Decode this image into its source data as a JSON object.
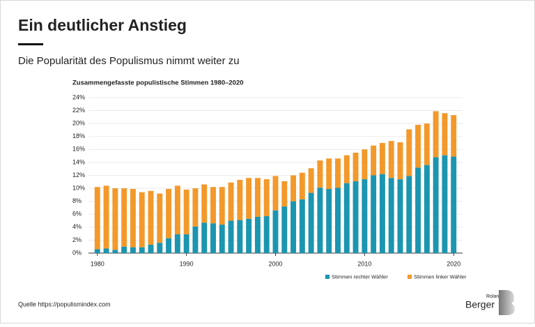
{
  "chart_data": {
    "type": "stacked_bar",
    "title": "Ein deutlicher Anstieg",
    "subtitle": "Die Popularität des Populismus nimmt weiter zu",
    "plot_title": "Zusammengefasste populistische Stimmen 1980–2020",
    "source": "Quelle https://populismindex.com",
    "x": [
      1980,
      1981,
      1982,
      1983,
      1984,
      1985,
      1986,
      1987,
      1988,
      1989,
      1990,
      1991,
      1992,
      1993,
      1994,
      1995,
      1996,
      1997,
      1998,
      1999,
      2000,
      2001,
      2002,
      2003,
      2004,
      2005,
      2006,
      2007,
      2008,
      2009,
      2010,
      2011,
      2012,
      2013,
      2014,
      2015,
      2016,
      2017,
      2018,
      2019,
      2020
    ],
    "xlim": [
      1979,
      2021
    ],
    "xticks": [
      1980,
      1990,
      2000,
      2010,
      2020
    ],
    "ylim": [
      0,
      24
    ],
    "yticks": [
      {
        "value": 0,
        "label": "0%"
      },
      {
        "value": 2,
        "label": "2%"
      },
      {
        "value": 4,
        "label": "4%"
      },
      {
        "value": 6,
        "label": "6%"
      },
      {
        "value": 8,
        "label": "8%"
      },
      {
        "value": 10,
        "label": "10%"
      },
      {
        "value": 12,
        "label": "12%"
      },
      {
        "value": 14,
        "label": "14%"
      },
      {
        "value": 16,
        "label": "16%"
      },
      {
        "value": 18,
        "label": "18%"
      },
      {
        "value": 20,
        "label": "20%"
      },
      {
        "value": 22,
        "label": "22%"
      },
      {
        "value": 24,
        "label": "24%"
      }
    ],
    "grid": true,
    "legend": "bottom-right",
    "series": [
      {
        "name": "Stimmen rechter Wähler",
        "color": "#1b95b0",
        "values": [
          0.6,
          0.7,
          0.5,
          1.0,
          0.9,
          0.9,
          1.3,
          1.6,
          2.3,
          2.9,
          2.9,
          4.1,
          4.7,
          4.6,
          4.4,
          5.0,
          5.1,
          5.3,
          5.6,
          5.7,
          6.6,
          7.2,
          8.0,
          8.3,
          9.3,
          10.1,
          9.9,
          10.1,
          10.8,
          11.1,
          11.4,
          12.0,
          12.2,
          11.6,
          11.4,
          11.9,
          13.2,
          13.6,
          14.8,
          15.1,
          14.9
        ]
      },
      {
        "name": "Stimmen linker Wähler",
        "color": "#f3992b",
        "values": [
          9.6,
          9.7,
          9.5,
          9.0,
          9.0,
          8.5,
          8.3,
          7.6,
          7.6,
          7.5,
          6.9,
          5.9,
          5.9,
          5.6,
          5.8,
          5.9,
          6.2,
          6.3,
          6.0,
          5.7,
          5.3,
          3.9,
          4.0,
          4.1,
          3.8,
          4.2,
          4.7,
          4.5,
          4.3,
          4.4,
          4.6,
          4.6,
          4.8,
          5.7,
          5.7,
          7.2,
          6.6,
          6.4,
          7.1,
          6.5,
          6.4
        ]
      }
    ]
  },
  "logo": {
    "line1": "Roland",
    "line2": "Berger"
  }
}
